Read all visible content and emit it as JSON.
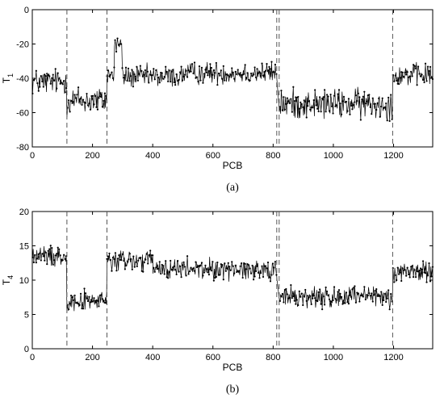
{
  "chart_data": [
    {
      "type": "line",
      "panel_label": "(a)",
      "xlabel": "PCB",
      "ylabel": "T",
      "ylabel_sub": "1",
      "xlim": [
        0,
        1330
      ],
      "ylim": [
        -80,
        0
      ],
      "xticks": [
        0,
        200,
        400,
        600,
        800,
        1000,
        1200
      ],
      "yticks": [
        -80,
        -60,
        -40,
        -20,
        0
      ],
      "grid": false,
      "legend": "none",
      "dividers_x": [
        115,
        248,
        812,
        820,
        1197
      ],
      "series": [
        {
          "segments": [
            {
              "x_range": [
                1,
                114
              ],
              "level": -42,
              "spread": 7
            },
            {
              "x_range": [
                115,
                247
              ],
              "level": -53,
              "spread": 8
            },
            {
              "x_range": [
                248,
                272
              ],
              "level": -38,
              "spread": 5
            },
            {
              "x_range": [
                273,
                298
              ],
              "level": -20,
              "spread": 6
            },
            {
              "x_range": [
                299,
                500
              ],
              "level": -39,
              "spread": 6
            },
            {
              "x_range": [
                501,
                812
              ],
              "level": -37,
              "spread": 6
            },
            {
              "x_range": [
                821,
                1197
              ],
              "level": -55,
              "spread": 8
            },
            {
              "x_range": [
                1198,
                1330
              ],
              "level": -38,
              "spread": 6
            }
          ]
        }
      ]
    },
    {
      "type": "line",
      "panel_label": "(b)",
      "xlabel": "PCB",
      "ylabel": "T",
      "ylabel_sub": "4",
      "xlim": [
        0,
        1330
      ],
      "ylim": [
        0,
        20
      ],
      "xticks": [
        0,
        200,
        400,
        600,
        800,
        1000,
        1200
      ],
      "yticks": [
        0,
        5,
        10,
        15,
        20
      ],
      "grid": false,
      "legend": "none",
      "dividers_x": [
        115,
        248,
        812,
        820,
        1197
      ],
      "series": [
        {
          "segments": [
            {
              "x_range": [
                1,
                114
              ],
              "level": 13.5,
              "spread": 1.4
            },
            {
              "x_range": [
                115,
                247
              ],
              "level": 7,
              "spread": 1.3
            },
            {
              "x_range": [
                248,
                400
              ],
              "level": 12.8,
              "spread": 1.6
            },
            {
              "x_range": [
                401,
                812
              ],
              "level": 11.6,
              "spread": 1.4
            },
            {
              "x_range": [
                821,
                1197
              ],
              "level": 7.5,
              "spread": 1.6
            },
            {
              "x_range": [
                1198,
                1330
              ],
              "level": 11.3,
              "spread": 1.4
            }
          ]
        }
      ]
    }
  ]
}
